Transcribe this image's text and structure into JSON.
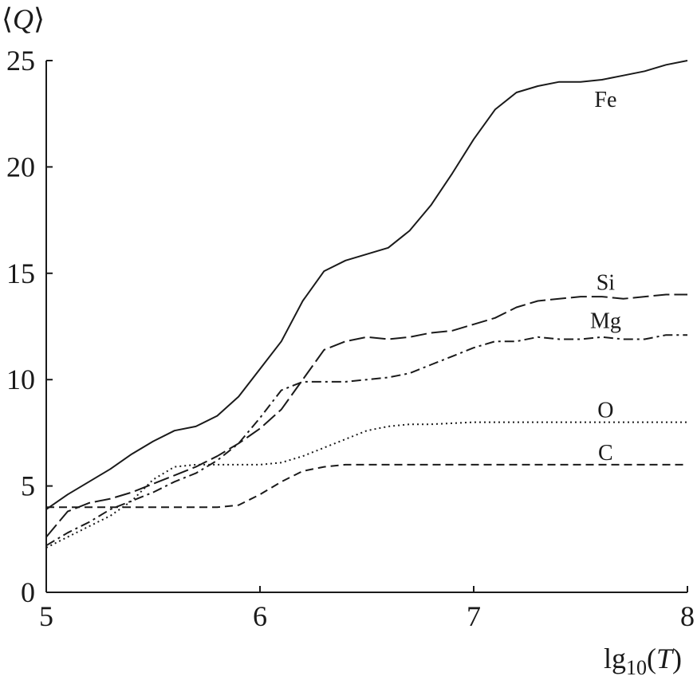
{
  "chart_data": {
    "type": "line",
    "title": "",
    "xlabel": {
      "pre": "lg",
      "sub": "10",
      "paren_open": "(",
      "var": "T",
      "paren_close": ")"
    },
    "ylabel": {
      "open": "⟨",
      "var": "Q",
      "close": "⟩"
    },
    "xlim": [
      5,
      8
    ],
    "ylim": [
      0,
      25
    ],
    "xticks": [
      5,
      6,
      7,
      8
    ],
    "yticks": [
      0,
      5,
      10,
      15,
      20,
      25
    ],
    "grid": false,
    "colors": {
      "line": "#1a1a1a",
      "axis": "#1a1a1a"
    },
    "series": [
      {
        "name": "Fe",
        "style": "solid",
        "label_pos": [
          7.55,
          23.2
        ],
        "x": [
          5.0,
          5.1,
          5.2,
          5.3,
          5.4,
          5.5,
          5.6,
          5.7,
          5.8,
          5.9,
          6.0,
          6.1,
          6.2,
          6.3,
          6.4,
          6.5,
          6.6,
          6.7,
          6.8,
          6.9,
          7.0,
          7.1,
          7.2,
          7.3,
          7.4,
          7.5,
          7.6,
          7.7,
          7.8,
          7.9,
          8.0
        ],
        "y": [
          3.9,
          4.6,
          5.2,
          5.8,
          6.5,
          7.1,
          7.6,
          7.8,
          8.3,
          9.2,
          10.5,
          11.8,
          13.7,
          15.1,
          15.6,
          15.9,
          16.2,
          17.0,
          18.2,
          19.7,
          21.3,
          22.7,
          23.5,
          23.8,
          24.0,
          24.0,
          24.1,
          24.3,
          24.5,
          24.8,
          25.0
        ]
      },
      {
        "name": "Si",
        "style": "longdash",
        "label_pos": [
          7.55,
          14.6
        ],
        "x": [
          5.0,
          5.1,
          5.2,
          5.3,
          5.4,
          5.5,
          5.6,
          5.7,
          5.8,
          5.9,
          6.0,
          6.1,
          6.2,
          6.3,
          6.4,
          6.5,
          6.6,
          6.7,
          6.8,
          6.9,
          7.0,
          7.1,
          7.2,
          7.3,
          7.4,
          7.5,
          7.6,
          7.7,
          7.8,
          7.9,
          8.0
        ],
        "y": [
          2.6,
          3.8,
          4.2,
          4.4,
          4.7,
          5.1,
          5.5,
          5.9,
          6.4,
          7.0,
          7.7,
          8.6,
          10.0,
          11.4,
          11.8,
          12.0,
          11.9,
          12.0,
          12.2,
          12.3,
          12.6,
          12.9,
          13.4,
          13.7,
          13.8,
          13.9,
          13.9,
          13.8,
          13.9,
          14.0,
          14.0
        ]
      },
      {
        "name": "Mg",
        "style": "dashdot",
        "label_pos": [
          7.55,
          12.8
        ],
        "x": [
          5.0,
          5.1,
          5.2,
          5.3,
          5.4,
          5.5,
          5.6,
          5.7,
          5.8,
          5.9,
          6.0,
          6.1,
          6.2,
          6.3,
          6.4,
          6.5,
          6.6,
          6.7,
          6.8,
          6.9,
          7.0,
          7.1,
          7.2,
          7.3,
          7.4,
          7.5,
          7.6,
          7.7,
          7.8,
          7.9,
          8.0
        ],
        "y": [
          2.2,
          2.8,
          3.3,
          3.9,
          4.3,
          4.7,
          5.2,
          5.6,
          6.2,
          7.0,
          8.2,
          9.5,
          9.9,
          9.9,
          9.9,
          10.0,
          10.1,
          10.3,
          10.7,
          11.1,
          11.5,
          11.8,
          11.8,
          12.0,
          11.9,
          11.9,
          12.0,
          11.9,
          11.9,
          12.1,
          12.1
        ]
      },
      {
        "name": "O",
        "style": "dotted",
        "label_pos": [
          7.55,
          8.6
        ],
        "x": [
          5.0,
          5.1,
          5.2,
          5.3,
          5.4,
          5.5,
          5.6,
          5.7,
          5.8,
          5.9,
          6.0,
          6.1,
          6.2,
          6.3,
          6.4,
          6.5,
          6.6,
          6.7,
          6.8,
          6.9,
          7.0,
          7.1,
          7.2,
          7.3,
          7.4,
          7.5,
          7.6,
          7.7,
          7.8,
          7.9,
          8.0
        ],
        "y": [
          2.1,
          2.6,
          3.1,
          3.6,
          4.3,
          5.3,
          5.9,
          6.0,
          6.0,
          6.0,
          6.0,
          6.1,
          6.4,
          6.8,
          7.2,
          7.6,
          7.8,
          7.9,
          7.9,
          7.95,
          8.0,
          8.0,
          8.0,
          8.0,
          8.0,
          8.0,
          8.0,
          8.0,
          8.0,
          8.0,
          8.0
        ]
      },
      {
        "name": "C",
        "style": "dashed",
        "label_pos": [
          7.55,
          6.6
        ],
        "x": [
          5.0,
          5.1,
          5.2,
          5.3,
          5.4,
          5.5,
          5.6,
          5.7,
          5.8,
          5.9,
          6.0,
          6.1,
          6.2,
          6.3,
          6.4,
          6.5,
          6.6,
          6.7,
          6.8,
          6.9,
          7.0,
          7.1,
          7.2,
          7.3,
          7.4,
          7.5,
          7.6,
          7.7,
          7.8,
          7.9,
          8.0
        ],
        "y": [
          4.0,
          4.0,
          4.0,
          4.0,
          4.0,
          4.0,
          4.0,
          4.0,
          4.0,
          4.1,
          4.6,
          5.2,
          5.7,
          5.9,
          6.0,
          6.0,
          6.0,
          6.0,
          6.0,
          6.0,
          6.0,
          6.0,
          6.0,
          6.0,
          6.0,
          6.0,
          6.0,
          6.0,
          6.0,
          6.0,
          6.0
        ]
      }
    ]
  }
}
